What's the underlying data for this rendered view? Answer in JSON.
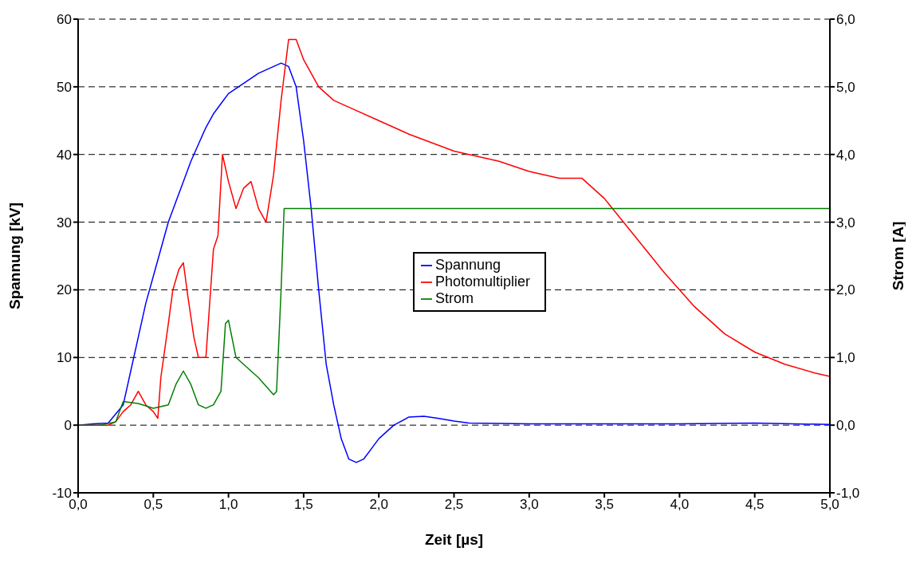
{
  "chart_data": {
    "type": "line",
    "xlabel": "Zeit [µs]",
    "ylabel": "Spannung [kV]",
    "y2label": "Strom [A]",
    "xlim": [
      0,
      5
    ],
    "xticks": [
      {
        "value": 0,
        "label": "0,0"
      },
      {
        "value": 0.5,
        "label": "0,5"
      },
      {
        "value": 1,
        "label": "1,0"
      },
      {
        "value": 1.5,
        "label": "1,5"
      },
      {
        "value": 2,
        "label": "2,0"
      },
      {
        "value": 2.5,
        "label": "2,5"
      },
      {
        "value": 3,
        "label": "3,0"
      },
      {
        "value": 3.5,
        "label": "3,5"
      },
      {
        "value": 4,
        "label": "4,0"
      },
      {
        "value": 4.5,
        "label": "4,5"
      },
      {
        "value": 5,
        "label": "5,0"
      }
    ],
    "ylim": [
      -10,
      60
    ],
    "yticks": [
      -10,
      0,
      10,
      20,
      30,
      40,
      50,
      60
    ],
    "y2lim": [
      -1,
      6
    ],
    "y2ticks": [
      {
        "value": -1,
        "label": "-1,0"
      },
      {
        "value": 0,
        "label": "0,0"
      },
      {
        "value": 1,
        "label": "1,0"
      },
      {
        "value": 2,
        "label": "2,0"
      },
      {
        "value": 3,
        "label": "3,0"
      },
      {
        "value": 4,
        "label": "4,0"
      },
      {
        "value": 5,
        "label": "5,0"
      },
      {
        "value": 6,
        "label": "6,0"
      }
    ],
    "grid": "y",
    "legend": "center",
    "marker": "none",
    "line_style": "solid",
    "series": [
      {
        "name": "Spannung",
        "color": "#0000ff",
        "x": [
          0,
          0.1,
          0.2,
          0.3,
          0.35,
          0.4,
          0.45,
          0.5,
          0.55,
          0.6,
          0.65,
          0.7,
          0.75,
          0.8,
          0.85,
          0.9,
          0.95,
          1.0,
          1.1,
          1.2,
          1.3,
          1.35,
          1.4,
          1.45,
          1.5,
          1.55,
          1.6,
          1.65,
          1.7,
          1.75,
          1.8,
          1.85,
          1.9,
          1.95,
          2.0,
          2.1,
          2.2,
          2.3,
          2.4,
          2.5,
          2.6,
          3.0,
          3.5,
          4.0,
          4.5,
          5.0
        ],
        "values": [
          0,
          0.2,
          0.3,
          3,
          8,
          13,
          18,
          22,
          26,
          30,
          33,
          36,
          39,
          41.5,
          44,
          46,
          47.5,
          49,
          50.5,
          52,
          53,
          53.5,
          53,
          50,
          42,
          32,
          20,
          9,
          3,
          -2,
          -5,
          -5.5,
          -5,
          -3.5,
          -2,
          0,
          1.2,
          1.3,
          1,
          0.6,
          0.3,
          0.2,
          0.2,
          0.2,
          0.3,
          0.1
        ]
      },
      {
        "name": "Photomultiplier",
        "color": "#ff0000",
        "x": [
          0,
          0.2,
          0.25,
          0.3,
          0.35,
          0.4,
          0.45,
          0.5,
          0.53,
          0.55,
          0.6,
          0.63,
          0.67,
          0.7,
          0.73,
          0.77,
          0.8,
          0.85,
          0.9,
          0.93,
          0.96,
          1.0,
          1.05,
          1.1,
          1.15,
          1.2,
          1.25,
          1.3,
          1.35,
          1.4,
          1.45,
          1.5,
          1.6,
          1.7,
          1.8,
          2.0,
          2.2,
          2.5,
          2.8,
          3.0,
          3.2,
          3.35,
          3.5,
          3.7,
          3.9,
          4.1,
          4.3,
          4.5,
          4.7,
          4.9,
          5.0
        ],
        "values": [
          0,
          0,
          0.5,
          2,
          3,
          5,
          3,
          2,
          1,
          7,
          15,
          20,
          23,
          24,
          19,
          13,
          10,
          10,
          26,
          28,
          40,
          36,
          32,
          35,
          36,
          32,
          30,
          37,
          48,
          57,
          57,
          54,
          50,
          48,
          47,
          45,
          43,
          40.5,
          39,
          37.5,
          36.5,
          36.5,
          33.5,
          28,
          22.5,
          17.5,
          13.5,
          10.8,
          9,
          7.7,
          7.2
        ]
      },
      {
        "name": "Strom",
        "color": "#008000",
        "axis": "y2",
        "x": [
          0,
          0.15,
          0.25,
          0.3,
          0.4,
          0.5,
          0.6,
          0.65,
          0.7,
          0.75,
          0.8,
          0.85,
          0.9,
          0.95,
          0.98,
          1.0,
          1.05,
          1.1,
          1.2,
          1.3,
          1.32,
          1.35,
          1.37,
          5.0
        ],
        "values": [
          0,
          0,
          0.05,
          0.35,
          0.32,
          0.25,
          0.3,
          0.6,
          0.8,
          0.6,
          0.3,
          0.25,
          0.3,
          0.5,
          1.5,
          1.55,
          1.0,
          0.9,
          0.7,
          0.45,
          0.5,
          2.0,
          3.2,
          3.2
        ]
      }
    ]
  }
}
